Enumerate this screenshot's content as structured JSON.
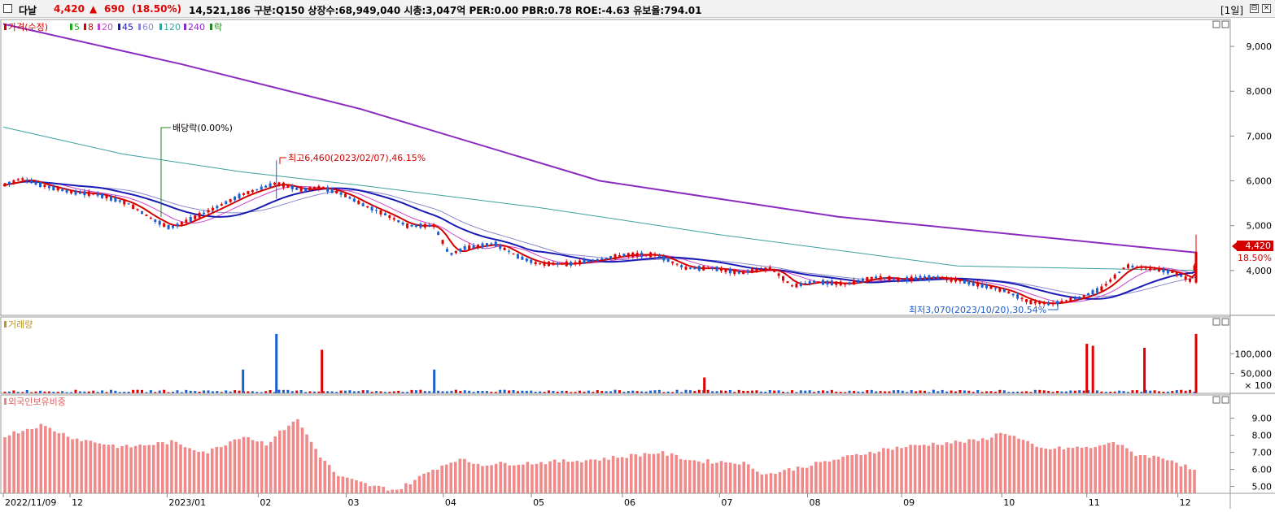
{
  "header": {
    "stock_name": "다날",
    "price": "4,420",
    "change_arrow": "▲",
    "change": "690",
    "change_pct": "(18.50%)",
    "info": "14,521,186  구분:Q150 상장수:68,949,040 시총:3,047억  PER:0.00 PBR:0.78 ROE:-4.63 유보율:794.01",
    "period": "[1일]",
    "colors": {
      "up": "#e00000",
      "down": "#1a5fd0",
      "text": "#000000"
    }
  },
  "window_buttons": {
    "minimize": "⊟",
    "close": "×"
  },
  "price_panel": {
    "legend": [
      {
        "label": "가격(수정)",
        "color": "#d40000"
      },
      {
        "label": "5",
        "color": "#22aa22"
      },
      {
        "label": "8",
        "color": "#d40000"
      },
      {
        "label": "20",
        "color": "#cc44cc"
      },
      {
        "label": "45",
        "color": "#1a1ab4"
      },
      {
        "label": "60",
        "color": "#8888cc"
      },
      {
        "label": "120",
        "color": "#3aa0a0"
      },
      {
        "label": "240",
        "color": "#8a2bc0"
      },
      {
        "label": "락",
        "color": "#1e8a1e"
      }
    ],
    "dividend_label": "배당락(0.00%)",
    "high_label": "최고6,460(2023/02/07),46.15%",
    "low_label": "최저3,070(2023/10/20),30.54%",
    "last_price_tag": "4,420",
    "last_pct_tag": "18.50%"
  },
  "volume_panel": {
    "legend": "거래량"
  },
  "foreign_panel": {
    "legend": "외국인보유비중"
  },
  "axis_labels": {
    "price_ticks": [
      "9,000",
      "8,000",
      "7,000",
      "6,000",
      "5,000",
      "4,000"
    ],
    "volume_ticks": [
      "100,000",
      "50,000",
      "× 100"
    ],
    "foreign_ticks": [
      "9.00",
      "8.00",
      "7.00",
      "6.00",
      "5.00"
    ],
    "x_ticks": [
      "2022/11/09",
      "12",
      "2023/01",
      "02",
      "03",
      "04",
      "05",
      "06",
      "07",
      "08",
      "09",
      "10",
      "11",
      "12"
    ]
  },
  "chart_data": {
    "type": "candlestick",
    "x_start": "2022/11/09",
    "x_end": "2023/12",
    "y_price_range": [
      3000,
      9600
    ],
    "price_path": [
      [
        "2022/11/09",
        5900
      ],
      [
        "2022/11/15",
        6050
      ],
      [
        "2022/11/22",
        5900
      ],
      [
        "2022/12/01",
        5750
      ],
      [
        "2022/12/10",
        5700
      ],
      [
        "2022/12/20",
        5500
      ],
      [
        "2022/12/28",
        5150
      ],
      [
        "2023/01/03",
        4950
      ],
      [
        "2023/01/10",
        5150
      ],
      [
        "2023/01/18",
        5400
      ],
      [
        "2023/01/27",
        5700
      ],
      [
        "2023/02/07",
        5950
      ],
      [
        "2023/02/15",
        5800
      ],
      [
        "2023/02/22",
        5850
      ],
      [
        "2023/03/01",
        5700
      ],
      [
        "2023/03/08",
        5450
      ],
      [
        "2023/03/15",
        5250
      ],
      [
        "2023/03/22",
        5000
      ],
      [
        "2023/03/31",
        5000
      ],
      [
        "2023/04/05",
        4350
      ],
      [
        "2023/04/10",
        4500
      ],
      [
        "2023/04/20",
        4600
      ],
      [
        "2023/04/28",
        4300
      ],
      [
        "2023/05/04",
        4150
      ],
      [
        "2023/05/15",
        4150
      ],
      [
        "2023/05/25",
        4250
      ],
      [
        "2023/06/02",
        4350
      ],
      [
        "2023/06/12",
        4350
      ],
      [
        "2023/06/22",
        4050
      ],
      [
        "2023/07/01",
        4050
      ],
      [
        "2023/07/10",
        3950
      ],
      [
        "2023/07/20",
        4050
      ],
      [
        "2023/07/27",
        3650
      ],
      [
        "2023/08/03",
        3750
      ],
      [
        "2023/08/14",
        3700
      ],
      [
        "2023/08/24",
        3850
      ],
      [
        "2023/09/01",
        3800
      ],
      [
        "2023/09/12",
        3850
      ],
      [
        "2023/09/22",
        3750
      ],
      [
        "2023/10/05",
        3550
      ],
      [
        "2023/10/13",
        3300
      ],
      [
        "2023/10/20",
        3250
      ],
      [
        "2023/10/30",
        3400
      ],
      [
        "2023/11/06",
        3600
      ],
      [
        "2023/11/14",
        4100
      ],
      [
        "2023/11/22",
        4050
      ],
      [
        "2023/11/30",
        3950
      ],
      [
        "2023/12/06",
        3750
      ],
      [
        "2023/12/07",
        4420
      ]
    ],
    "ma240": [
      [
        0,
        9500
      ],
      [
        0.15,
        8600
      ],
      [
        0.3,
        7600
      ],
      [
        0.5,
        6000
      ],
      [
        0.7,
        5200
      ],
      [
        1.0,
        4400
      ]
    ],
    "ma120": [
      [
        0,
        7200
      ],
      [
        0.1,
        6600
      ],
      [
        0.2,
        6200
      ],
      [
        0.3,
        5900
      ],
      [
        0.45,
        5400
      ],
      [
        0.6,
        4800
      ],
      [
        0.8,
        4100
      ],
      [
        1.0,
        4000
      ]
    ],
    "annotations": [
      {
        "label": "최고6,460(2023/02/07),46.15%",
        "date": "2023/02/07",
        "value": 6460
      },
      {
        "label": "최저3,070(2023/10/20),30.54%",
        "date": "2023/10/20",
        "value": 3070
      },
      {
        "label": "배당락(0.00%)",
        "date": "2022/12/28"
      }
    ],
    "volume_spikes": [
      {
        "date": "2023/01/27",
        "value": 60000,
        "dir": "down"
      },
      {
        "date": "2023/02/07",
        "value": 150000,
        "dir": "down"
      },
      {
        "date": "2023/02/22",
        "value": 110000,
        "dir": "up"
      },
      {
        "date": "2023/03/31",
        "value": 60000,
        "dir": "down"
      },
      {
        "date": "2023/06/28",
        "value": 40000,
        "dir": "up"
      },
      {
        "date": "2023/11/01",
        "value": 125000,
        "dir": "up"
      },
      {
        "date": "2023/11/03",
        "value": 120000,
        "dir": "up"
      },
      {
        "date": "2023/11/20",
        "value": 115000,
        "dir": "up"
      },
      {
        "date": "2023/12/07",
        "value": 150000,
        "dir": "up"
      }
    ],
    "foreign_ratio_range": [
      4.6,
      9.6
    ]
  }
}
